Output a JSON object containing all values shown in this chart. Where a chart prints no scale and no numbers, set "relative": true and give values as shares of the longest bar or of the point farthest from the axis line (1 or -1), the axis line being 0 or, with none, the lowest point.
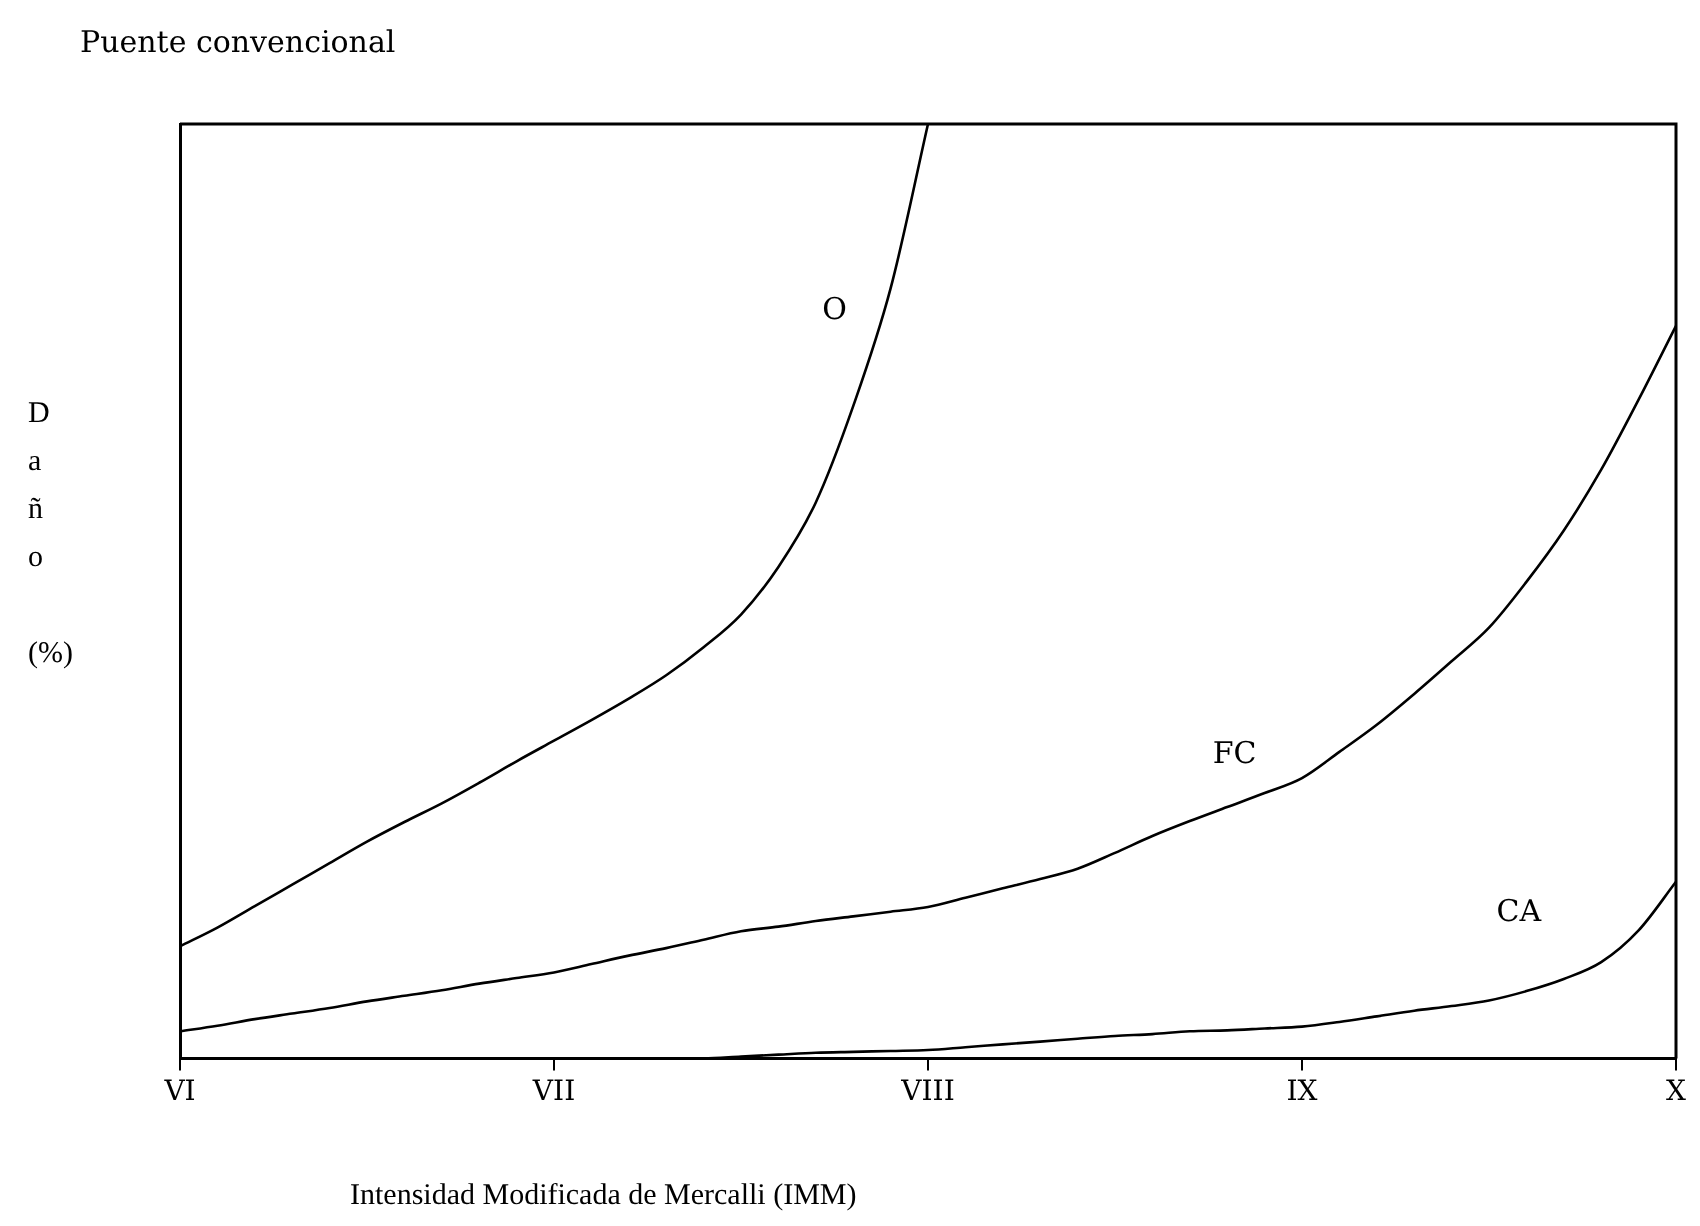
{
  "chart_data": {
    "type": "line",
    "title": "Puente convencional",
    "xlabel": "Intensidad Modificada de Mercalli (IMM)",
    "ylabel": "Daño (%)",
    "relative": true,
    "categories": [
      "VI",
      null,
      null,
      null,
      null,
      null,
      null,
      null,
      null,
      null,
      "VII",
      null,
      null,
      null,
      null,
      null,
      null,
      null,
      null,
      null,
      "VIII",
      null,
      null,
      null,
      null,
      null,
      null,
      null,
      null,
      null,
      "IX",
      null,
      null,
      null,
      null,
      null,
      null,
      null,
      null,
      null,
      "X"
    ],
    "grid": false,
    "legend": false,
    "marker": "none",
    "line_style": "solid",
    "series": [
      {
        "name": "O",
        "color": "#000000",
        "values": [
          0.12,
          0.14,
          0.163,
          0.186,
          0.209,
          0.232,
          0.253,
          0.273,
          0.295,
          0.318,
          0.34,
          0.362,
          0.385,
          0.41,
          0.44,
          0.475,
          0.526,
          0.595,
          0.698,
          0.824,
          1,
          null,
          null,
          null,
          null,
          null,
          null,
          null,
          null,
          null,
          null,
          null,
          null,
          null,
          null,
          null,
          null,
          null,
          null,
          null,
          null
        ]
      },
      {
        "name": "FC",
        "color": "#000000",
        "values": [
          0.029,
          0.035,
          0.042,
          0.048,
          0.054,
          0.061,
          0.067,
          0.073,
          0.08,
          0.086,
          0.092,
          0.101,
          0.11,
          0.118,
          0.127,
          0.136,
          0.141,
          0.147,
          0.152,
          0.157,
          0.162,
          0.172,
          0.182,
          0.192,
          0.203,
          0.22,
          0.238,
          0.254,
          0.269,
          0.284,
          0.3,
          0.328,
          0.357,
          0.39,
          0.425,
          0.461,
          0.51,
          0.565,
          0.63,
          0.705,
          0.784
        ]
      },
      {
        "name": "CA",
        "color": "#000000",
        "values": [
          null,
          null,
          null,
          null,
          null,
          null,
          null,
          0,
          0,
          0,
          0,
          0,
          0,
          0,
          0,
          0.002,
          0.004,
          0.006,
          0.007,
          0.008,
          0.009,
          0.012,
          0.015,
          0.018,
          0.021,
          0.024,
          0.026,
          0.029,
          0.03,
          0.032,
          0.034,
          0.039,
          0.045,
          0.051,
          0.056,
          0.062,
          0.072,
          0.085,
          0.103,
          0.137,
          0.189
        ]
      }
    ]
  }
}
